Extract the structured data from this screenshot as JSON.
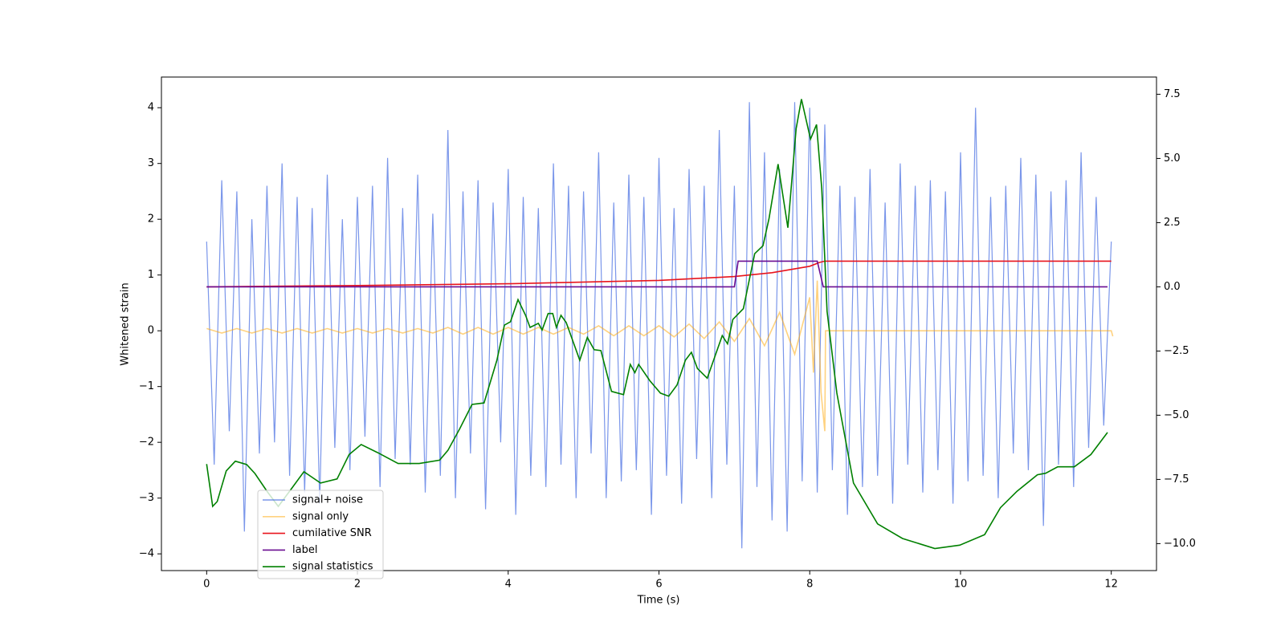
{
  "chart_data": {
    "type": "line",
    "xlabel": "Time (s)",
    "ylabel": "Whitened strain",
    "xlim": [
      -0.6,
      12.6
    ],
    "ylim": [
      -4.3,
      4.55
    ],
    "y2lim": [
      -11.05,
      8.17
    ],
    "xticks": [
      0,
      2,
      4,
      6,
      8,
      10,
      12
    ],
    "yticks": [
      {
        "value": -4,
        "label": "−4"
      },
      {
        "value": -3,
        "label": "−3"
      },
      {
        "value": -2,
        "label": "−2"
      },
      {
        "value": -1,
        "label": "−1"
      },
      0,
      1,
      2,
      3,
      4
    ],
    "y2ticks": [
      {
        "value": -10,
        "label": "−10.0"
      },
      {
        "value": -7.5,
        "label": "−7.5"
      },
      {
        "value": -5,
        "label": "−5.0"
      },
      {
        "value": -2.5,
        "label": "−2.5"
      },
      {
        "value": 0,
        "label": "0.0"
      },
      {
        "value": 2.5,
        "label": "2.5"
      },
      {
        "value": 5,
        "label": "5.0"
      },
      {
        "value": 7.5,
        "label": "7.5"
      }
    ],
    "legend": "lower left",
    "series": [
      {
        "name": "signal+ noise",
        "color": "#4169e1",
        "alpha": 0.7,
        "axis": "y",
        "x": [
          0,
          0.1,
          0.2,
          0.3,
          0.4,
          0.5,
          0.6,
          0.7,
          0.8,
          0.9,
          1,
          1.1,
          1.2,
          1.3,
          1.4,
          1.5,
          1.6,
          1.7,
          1.8,
          1.9,
          2,
          2.1,
          2.2,
          2.3,
          2.4,
          2.5,
          2.6,
          2.7,
          2.8,
          2.9,
          3,
          3.1,
          3.2,
          3.3,
          3.4,
          3.5,
          3.6,
          3.7,
          3.8,
          3.9,
          4,
          4.1,
          4.2,
          4.3,
          4.4,
          4.5,
          4.6,
          4.7,
          4.8,
          4.9,
          5,
          5.1,
          5.2,
          5.3,
          5.4,
          5.5,
          5.6,
          5.7,
          5.8,
          5.9,
          6,
          6.1,
          6.2,
          6.3,
          6.4,
          6.5,
          6.6,
          6.7,
          6.8,
          6.9,
          7,
          7.1,
          7.2,
          7.3,
          7.4,
          7.5,
          7.6,
          7.7,
          7.8,
          7.9,
          8,
          8.1,
          8.2,
          8.3,
          8.4,
          8.5,
          8.6,
          8.7,
          8.8,
          8.9,
          9,
          9.1,
          9.2,
          9.3,
          9.4,
          9.5,
          9.6,
          9.7,
          9.8,
          9.9,
          10,
          10.1,
          10.2,
          10.3,
          10.4,
          10.5,
          10.6,
          10.7,
          10.8,
          10.9,
          11,
          11.1,
          11.2,
          11.3,
          11.4,
          11.5,
          11.6,
          11.7,
          11.8,
          11.9,
          12
        ],
        "values": [
          1.6,
          -2.4,
          2.7,
          -1.8,
          2.5,
          -3.6,
          2.0,
          -2.2,
          2.6,
          -2.0,
          3.0,
          -2.6,
          2.4,
          -2.9,
          2.2,
          -3.1,
          2.8,
          -2.1,
          2.0,
          -2.5,
          2.4,
          -1.9,
          2.6,
          -2.8,
          3.1,
          -2.3,
          2.2,
          -2.4,
          2.8,
          -2.9,
          2.1,
          -2.6,
          3.6,
          -3.0,
          2.5,
          -2.2,
          2.7,
          -3.2,
          2.3,
          -2.0,
          2.9,
          -3.3,
          2.4,
          -2.6,
          2.2,
          -2.8,
          3.0,
          -2.4,
          2.6,
          -3.0,
          2.5,
          -2.2,
          3.2,
          -3.0,
          2.3,
          -2.7,
          2.8,
          -2.5,
          2.4,
          -3.3,
          3.1,
          -2.6,
          2.2,
          -3.1,
          2.9,
          -2.3,
          2.6,
          -3.0,
          3.6,
          -2.4,
          2.6,
          -3.9,
          4.1,
          -2.8,
          3.2,
          -3.4,
          2.9,
          -3.6,
          4.1,
          -2.7,
          4.0,
          -2.9,
          3.7,
          -2.5,
          2.6,
          -3.3,
          2.4,
          -2.8,
          2.9,
          -2.6,
          2.3,
          -3.1,
          3.0,
          -2.4,
          2.6,
          -2.9,
          2.7,
          -2.5,
          2.5,
          -3.1,
          3.2,
          -2.7,
          4.0,
          -2.6,
          2.4,
          -3.0,
          2.6,
          -2.2,
          3.1,
          -2.5,
          2.8,
          -3.5,
          2.5,
          -2.4,
          2.7,
          -2.8,
          3.2,
          -2.1,
          2.4,
          -1.7,
          1.6
        ]
      },
      {
        "name": "signal only",
        "color": "#ffa500",
        "alpha": 0.5,
        "axis": "y",
        "x": [
          0,
          0.2,
          0.4,
          0.6,
          0.8,
          1,
          1.2,
          1.4,
          1.6,
          1.8,
          2,
          2.2,
          2.4,
          2.6,
          2.8,
          3,
          3.2,
          3.4,
          3.6,
          3.8,
          4,
          4.2,
          4.4,
          4.6,
          4.8,
          5,
          5.2,
          5.4,
          5.6,
          5.8,
          6,
          6.2,
          6.4,
          6.6,
          6.8,
          7,
          7.2,
          7.4,
          7.6,
          7.8,
          8,
          8.05,
          8.1,
          8.15,
          8.2,
          8.21,
          12,
          12.02
        ],
        "values": [
          0.04,
          -0.04,
          0.04,
          -0.04,
          0.04,
          -0.04,
          0.04,
          -0.04,
          0.04,
          -0.04,
          0.04,
          -0.04,
          0.04,
          -0.04,
          0.04,
          -0.04,
          0.06,
          -0.06,
          0.06,
          -0.06,
          0.06,
          -0.06,
          0.06,
          -0.06,
          0.06,
          -0.06,
          0.09,
          -0.09,
          0.09,
          -0.09,
          0.09,
          -0.11,
          0.12,
          -0.14,
          0.16,
          -0.19,
          0.22,
          -0.27,
          0.33,
          -0.42,
          0.6,
          -0.75,
          0.9,
          -1.1,
          -1.8,
          0,
          0,
          -0.1
        ]
      },
      {
        "name": "cumilative SNR",
        "color": "#e8141c",
        "alpha": 1,
        "axis": "y2",
        "x": [
          0,
          2,
          4,
          6,
          7,
          7.5,
          8,
          8.13,
          8.2,
          12
        ],
        "values": [
          0,
          0.05,
          0.12,
          0.25,
          0.4,
          0.55,
          0.8,
          0.95,
          1.0,
          1.0
        ]
      },
      {
        "name": "label",
        "color": "#6a0d91",
        "alpha": 1,
        "axis": "y2",
        "x": [
          0,
          7.0,
          7.05,
          8.1,
          8.18,
          11.95
        ],
        "values": [
          0,
          0,
          1,
          1,
          0,
          0
        ]
      },
      {
        "name": "signal statistics",
        "color": "#008000",
        "alpha": 1,
        "axis": "y2",
        "x": [
          0,
          0.08,
          0.14,
          0.26,
          0.38,
          0.53,
          0.64,
          0.8,
          0.95,
          1.1,
          1.29,
          1.51,
          1.73,
          1.89,
          2.05,
          2.27,
          2.54,
          2.82,
          3.09,
          3.2,
          3.36,
          3.52,
          3.68,
          3.85,
          3.95,
          4.03,
          4.13,
          4.23,
          4.29,
          4.4,
          4.45,
          4.53,
          4.59,
          4.64,
          4.7,
          4.77,
          4.95,
          5.05,
          5.14,
          5.23,
          5.37,
          5.53,
          5.62,
          5.68,
          5.73,
          5.88,
          6.02,
          6.13,
          6.24,
          6.35,
          6.43,
          6.51,
          6.64,
          6.84,
          6.91,
          6.98,
          7.12,
          7.27,
          7.38,
          7.46,
          7.58,
          7.71,
          7.82,
          7.89,
          8.01,
          8.09,
          8.16,
          8.23,
          8.36,
          8.58,
          8.9,
          9.23,
          9.66,
          9.99,
          10.32,
          10.53,
          10.75,
          11.02,
          11.13,
          11.29,
          11.51,
          11.73,
          11.95
        ],
        "values": [
          -6.9,
          -8.55,
          -8.36,
          -7.17,
          -6.79,
          -6.92,
          -7.27,
          -7.96,
          -8.55,
          -7.96,
          -7.2,
          -7.64,
          -7.48,
          -6.53,
          -6.14,
          -6.46,
          -6.88,
          -6.88,
          -6.75,
          -6.37,
          -5.51,
          -4.58,
          -4.52,
          -2.86,
          -1.49,
          -1.36,
          -0.5,
          -1.11,
          -1.58,
          -1.42,
          -1.68,
          -1.04,
          -1.04,
          -1.58,
          -1.11,
          -1.39,
          -2.86,
          -1.97,
          -2.45,
          -2.48,
          -4.07,
          -4.2,
          -3.02,
          -3.34,
          -3.02,
          -3.66,
          -4.14,
          -4.26,
          -3.82,
          -2.86,
          -2.55,
          -3.18,
          -3.56,
          -1.9,
          -2.22,
          -1.27,
          -0.85,
          1.29,
          1.6,
          2.65,
          4.78,
          2.3,
          6.16,
          7.31,
          5.75,
          6.32,
          3.83,
          -0.95,
          -4.14,
          -7.64,
          -9.23,
          -9.8,
          -10.19,
          -10.06,
          -9.65,
          -8.6,
          -7.96,
          -7.32,
          -7.26,
          -7.01,
          -7.01,
          -6.53,
          -5.67
        ]
      }
    ]
  }
}
